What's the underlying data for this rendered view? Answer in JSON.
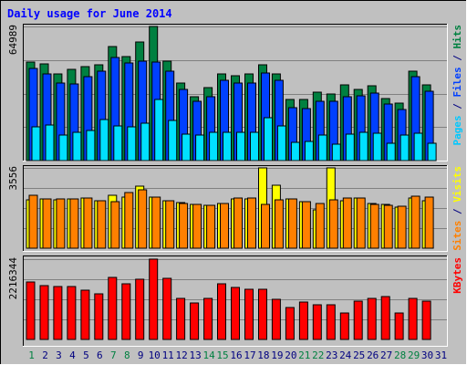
{
  "chart_data": [
    {
      "type": "bar",
      "title": "Daily usage for June 2014",
      "ylabel_parts": [
        {
          "text": "Pages",
          "color": "#00c8ff"
        },
        {
          "text": " / ",
          "color": "#000080"
        },
        {
          "text": "Files",
          "color": "#0040ff"
        },
        {
          "text": " / ",
          "color": "#000080"
        },
        {
          "text": "Hits",
          "color": "#008040"
        }
      ],
      "ymax_label": "64989",
      "ylim": [
        0,
        64989
      ],
      "categories": [
        "1",
        "2",
        "3",
        "4",
        "5",
        "6",
        "7",
        "8",
        "9",
        "10",
        "11",
        "12",
        "13",
        "14",
        "15",
        "16",
        "17",
        "18",
        "19",
        "20",
        "21",
        "22",
        "23",
        "24",
        "25",
        "26",
        "27",
        "28",
        "29",
        "30"
      ],
      "series": [
        {
          "name": "Hits",
          "color": "#008040",
          "values": [
            47600,
            46900,
            42200,
            44300,
            45500,
            46500,
            55200,
            50600,
            57500,
            64989,
            48200,
            37600,
            30900,
            35500,
            41800,
            41100,
            41800,
            46600,
            42000,
            29500,
            29400,
            33300,
            32100,
            36700,
            34500,
            36100,
            30000,
            28000,
            43200,
            36700
          ]
        },
        {
          "name": "Files",
          "color": "#0040ff",
          "values": [
            44600,
            42200,
            37600,
            37000,
            40500,
            43200,
            49800,
            47200,
            48200,
            47900,
            43200,
            34400,
            28700,
            31000,
            38700,
            37400,
            37400,
            42600,
            39000,
            25800,
            25100,
            28900,
            28700,
            30900,
            31200,
            32500,
            27300,
            24700,
            40800,
            33400
          ]
        },
        {
          "name": "Pages",
          "color": "#00e0ff",
          "values": [
            16500,
            17300,
            12400,
            13600,
            14500,
            19900,
            16900,
            16500,
            18200,
            29500,
            19500,
            12600,
            12200,
            13600,
            13600,
            13600,
            13600,
            20600,
            16800,
            8800,
            9100,
            12200,
            7800,
            12800,
            13900,
            13200,
            8300,
            12200,
            13200,
            8500
          ]
        }
      ]
    },
    {
      "type": "bar",
      "ylabel_parts": [
        {
          "text": "Sites",
          "color": "#ff8000"
        },
        {
          "text": " / ",
          "color": "#000080"
        },
        {
          "text": "Visits",
          "color": "#ffff00"
        }
      ],
      "ymax_label": "3556",
      "ylim": [
        0,
        3556
      ],
      "series": [
        {
          "name": "Visits",
          "color": "#ffff00",
          "values": [
            2150,
            2200,
            2150,
            2170,
            2210,
            2100,
            2360,
            2260,
            2740,
            2280,
            2090,
            2030,
            1940,
            1890,
            1980,
            2200,
            2200,
            3556,
            2800,
            2200,
            2050,
            1700,
            3556,
            2100,
            2230,
            1960,
            1950,
            1830,
            2220,
            2100
          ]
        },
        {
          "name": "Sites",
          "color": "#ff8000",
          "values": [
            2350,
            2200,
            2200,
            2170,
            2210,
            2100,
            2050,
            2470,
            2600,
            2280,
            2090,
            1990,
            1940,
            1890,
            1970,
            2240,
            2240,
            1950,
            2160,
            2200,
            2050,
            1970,
            2150,
            2230,
            2230,
            1950,
            1900,
            1850,
            2320,
            2260
          ]
        }
      ]
    },
    {
      "type": "bar",
      "ylabel_parts": [
        {
          "text": "KBytes",
          "color": "#ff0000"
        }
      ],
      "ymax_label": "2216344",
      "ylim": [
        0,
        2216344
      ],
      "series": [
        {
          "name": "KBytes",
          "color": "#ff0000",
          "values": [
            1585000,
            1485000,
            1455000,
            1455000,
            1350000,
            1270000,
            1715000,
            1545000,
            1655000,
            2216344,
            1685000,
            1125000,
            1000000,
            1135000,
            1535000,
            1425000,
            1375000,
            1375000,
            1105000,
            880000,
            1035000,
            950000,
            950000,
            730000,
            1070000,
            1135000,
            1185000,
            730000,
            1140000,
            1070000
          ]
        }
      ]
    }
  ],
  "day_labels": [
    "1",
    "2",
    "3",
    "4",
    "5",
    "6",
    "7",
    "8",
    "9",
    "10",
    "11",
    "12",
    "13",
    "14",
    "15",
    "16",
    "17",
    "18",
    "19",
    "20",
    "21",
    "22",
    "23",
    "24",
    "25",
    "26",
    "27",
    "28",
    "29",
    "30",
    "31"
  ],
  "weekend_days": [
    1,
    7,
    8,
    14,
    15,
    21,
    22,
    28,
    29
  ],
  "colors": {
    "background": "#c0c0c0",
    "title": "#0000ff",
    "weekday_label": "#000080",
    "weekend_label": "#008040",
    "grid": "#808080",
    "ymax_text": "#000000"
  }
}
